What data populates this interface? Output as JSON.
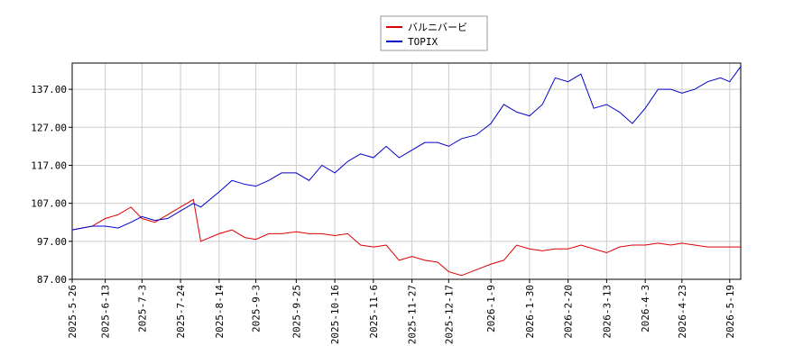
{
  "chart_data": {
    "type": "line",
    "x": [
      "2025-5-26",
      "2025-6-6",
      "2025-6-13",
      "2025-6-20",
      "2025-6-27",
      "2025-7-3",
      "2025-7-10",
      "2025-7-17",
      "2025-7-24",
      "2025-7-31",
      "2025-8-4",
      "2025-8-14",
      "2025-8-21",
      "2025-8-28",
      "2025-9-3",
      "2025-9-10",
      "2025-9-17",
      "2025-9-25",
      "2025-10-2",
      "2025-10-9",
      "2025-10-16",
      "2025-10-23",
      "2025-10-30",
      "2025-11-6",
      "2025-11-13",
      "2025-11-20",
      "2025-11-27",
      "2025-12-4",
      "2025-12-11",
      "2025-12-17",
      "2025-12-24",
      "2026-1-1",
      "2026-1-9",
      "2026-1-16",
      "2026-1-23",
      "2026-1-30",
      "2026-2-6",
      "2026-2-13",
      "2026-2-20",
      "2026-2-27",
      "2026-3-6",
      "2026-3-13",
      "2026-3-20",
      "2026-3-27",
      "2026-4-3",
      "2026-4-10",
      "2026-4-17",
      "2026-4-23",
      "2026-4-30",
      "2026-5-7",
      "2026-5-14",
      "2026-5-19",
      "2026-5-25"
    ],
    "series": [
      {
        "name": "バルニバービ",
        "color": "#dd0000",
        "values": [
          100,
          101,
          103,
          104,
          106,
          103,
          102,
          104,
          106,
          108,
          97,
          99,
          100,
          98,
          97.5,
          99,
          99,
          99.5,
          99,
          99,
          98.5,
          99,
          96,
          95.5,
          96,
          92,
          93,
          92,
          91.5,
          89,
          88,
          89.5,
          91,
          92,
          96,
          95,
          94.5,
          95,
          95,
          96,
          95,
          94,
          95.5,
          96,
          96,
          96.5,
          96,
          96.5,
          96,
          95.5,
          95.5,
          95.5,
          95.5
        ]
      },
      {
        "name": "TOPIX",
        "color": "#0000cc",
        "values": [
          100,
          101,
          101,
          100.5,
          102,
          103.5,
          102.5,
          103,
          105,
          107,
          106,
          110,
          113,
          112,
          111.5,
          113,
          115,
          115,
          113,
          117,
          115,
          118,
          120,
          119,
          122,
          119,
          121,
          123,
          123,
          122,
          124,
          125,
          128,
          133,
          131,
          130,
          133,
          140,
          139,
          141,
          132,
          133,
          131,
          128,
          132,
          137,
          137,
          136,
          137,
          139,
          140,
          139,
          143
        ]
      }
    ],
    "xlim": [
      "2025-5-26",
      "2026-5-25"
    ],
    "xticks": [
      "2025-5-26",
      "2025-6-13",
      "2025-7-3",
      "2025-7-24",
      "2025-8-14",
      "2025-9-3",
      "2025-9-25",
      "2025-10-16",
      "2025-11-6",
      "2025-11-27",
      "2025-12-17",
      "2026-1-9",
      "2026-1-30",
      "2026-2-20",
      "2026-3-13",
      "2026-4-3",
      "2026-4-23",
      "2026-5-19"
    ],
    "ylim": [
      87,
      143.9
    ],
    "yticks": [
      {
        "value": 87,
        "label": "87.00"
      },
      {
        "value": 97,
        "label": "97.00"
      },
      {
        "value": 107,
        "label": "107.00"
      },
      {
        "value": 117,
        "label": "117.00"
      },
      {
        "value": 127,
        "label": "127.00"
      },
      {
        "value": 137,
        "label": "137.00"
      }
    ],
    "grid": true
  }
}
